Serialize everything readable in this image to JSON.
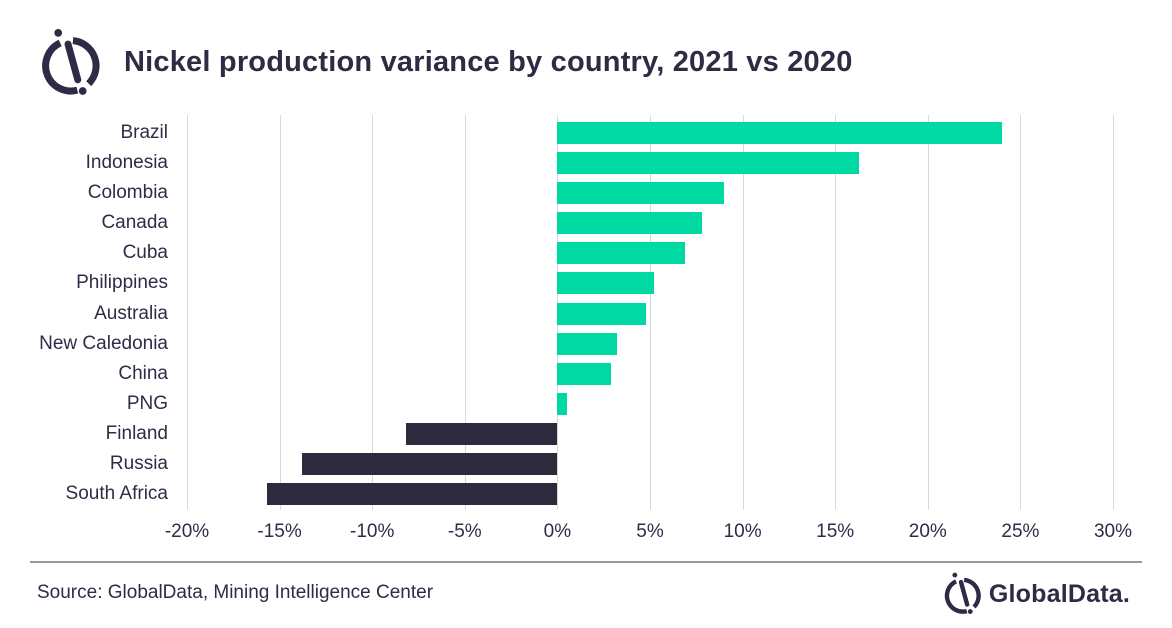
{
  "header": {
    "title": "Nickel production variance by country, 2021 vs 2020"
  },
  "footer": {
    "source": "Source: GlobalData, Mining Intelligence Center",
    "brand": "GlobalData."
  },
  "icons": {
    "header_logo": "globaldata-compass-mark",
    "footer_logo": "globaldata-compass-mark"
  },
  "colors": {
    "positive_bar": "#00D9A2",
    "negative_bar": "#2E2A3D",
    "text": "#2F2B45",
    "gridline": "#D9D9D9",
    "divider": "#999999",
    "background": "#FFFFFF"
  },
  "chart_data": {
    "type": "bar",
    "orientation": "horizontal",
    "title": "Nickel production variance by country, 2021 vs 2020",
    "unit": "%",
    "categories": [
      "Brazil",
      "Indonesia",
      "Colombia",
      "Canada",
      "Cuba",
      "Philippines",
      "Australia",
      "New Caledonia",
      "China",
      "PNG",
      "Finland",
      "Russia",
      "South Africa"
    ],
    "values": [
      24.0,
      16.3,
      9.0,
      7.8,
      6.9,
      5.2,
      4.8,
      3.2,
      2.9,
      0.5,
      -8.2,
      -13.8,
      -15.7
    ],
    "xlim": [
      -20,
      30
    ],
    "tick_step": 5,
    "x_tick_labels": [
      "-20%",
      "-15%",
      "-10%",
      "-5%",
      "0%",
      "5%",
      "10%",
      "15%",
      "20%",
      "25%",
      "30%"
    ],
    "grid": "vertical",
    "legend": "none",
    "bar_color_rule": "positive=green, negative=dark-navy"
  }
}
